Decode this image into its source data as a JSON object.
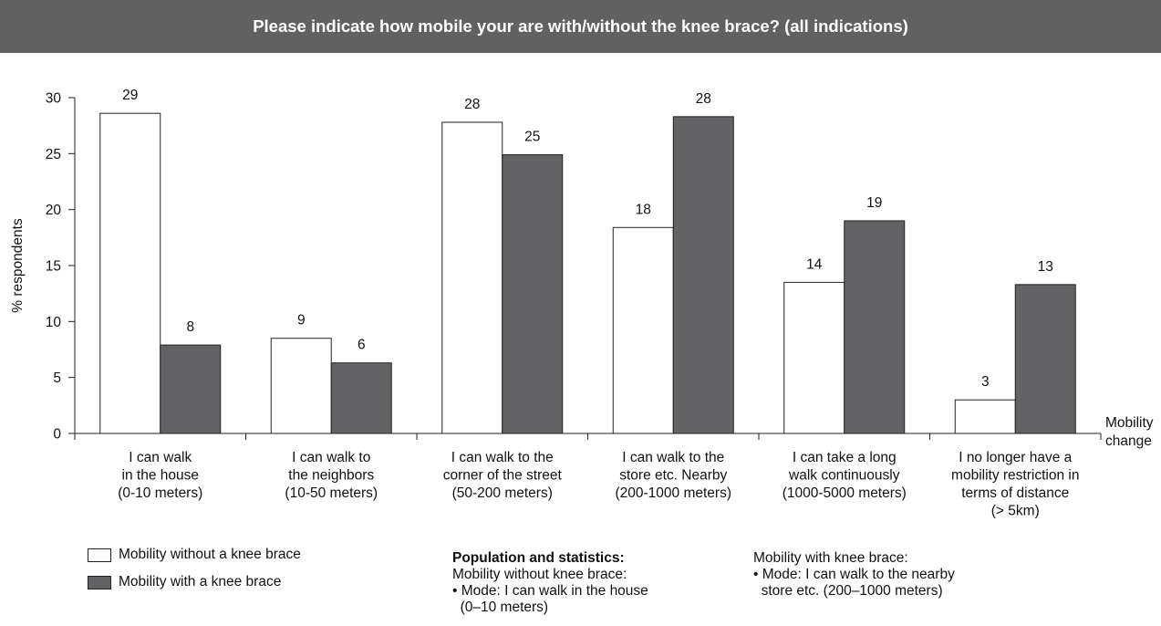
{
  "title": "Please indicate how mobile your are with/without the knee brace? (all indications)",
  "chart_data": {
    "type": "bar",
    "ylabel": "% respondents",
    "xlabel": [
      "Mobility",
      "change"
    ],
    "ylim": [
      0,
      30
    ],
    "yticks": [
      0,
      5,
      10,
      15,
      20,
      25,
      30
    ],
    "grid": false,
    "legend_position": "bottom-left",
    "categories": [
      [
        "I can walk",
        "in the house",
        "(0-10 meters)"
      ],
      [
        "I can walk to",
        "the neighbors",
        "(10-50 meters)"
      ],
      [
        "I can walk to the",
        "corner of the street",
        "(50-200 meters)"
      ],
      [
        "I can walk to the",
        "store etc. Nearby",
        "(200-1000 meters)"
      ],
      [
        "I can take a long",
        "walk continuously",
        "(1000-5000 meters)"
      ],
      [
        "I no longer have a",
        "mobility restriction in",
        "terms of distance",
        "(> 5km)"
      ]
    ],
    "series": [
      {
        "name": "Mobility without a knee brace",
        "color": "#ffffff",
        "values": [
          28.6,
          8.5,
          27.8,
          18.4,
          13.5,
          3.0
        ],
        "labels": [
          "29",
          "9",
          "28",
          "18",
          "14",
          "3"
        ]
      },
      {
        "name": "Mobility with a knee brace",
        "color": "#636366",
        "values": [
          7.9,
          6.3,
          24.9,
          28.3,
          19.0,
          13.3
        ],
        "labels": [
          "8",
          "6",
          "25",
          "28",
          "19",
          "13"
        ]
      }
    ]
  },
  "notes": {
    "without": {
      "title": "Population and statistics:",
      "lines": [
        "Mobility without knee brace:",
        "• Mode: I can walk in the house",
        "  (0–10 meters)"
      ]
    },
    "with": {
      "lines": [
        "Mobility with knee brace:",
        "• Mode: I can walk to the nearby",
        "  store etc. (200–1000 meters)"
      ]
    }
  }
}
